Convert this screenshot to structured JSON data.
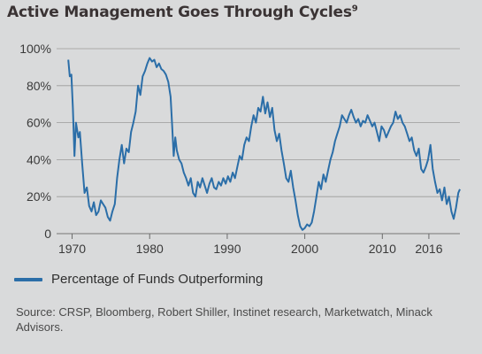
{
  "title": {
    "main": "Active Management Goes Through Cycles",
    "footnote": "9"
  },
  "legend": {
    "label": "Percentage of Funds Outperforming",
    "color": "#2b6ea8"
  },
  "source": "Source: CRSP, Bloomberg, Robert Shiller, Instinet research, Marketwatch, Minack Advisors.",
  "chart_data": {
    "type": "line",
    "title": "Active Management Goes Through Cycles",
    "xlabel": "",
    "ylabel": "",
    "xlim": [
      1968,
      2020
    ],
    "ylim": [
      0,
      100
    ],
    "x_ticks": [
      {
        "value": 1970,
        "label": "1970"
      },
      {
        "value": 1980,
        "label": "1980"
      },
      {
        "value": 1990,
        "label": "1990"
      },
      {
        "value": 2000,
        "label": "2000"
      },
      {
        "value": 2010,
        "label": "2010"
      },
      {
        "value": 2016,
        "label": "2016"
      }
    ],
    "y_ticks": [
      {
        "value": 0,
        "label": "0"
      },
      {
        "value": 20,
        "label": "20%"
      },
      {
        "value": 40,
        "label": "40%"
      },
      {
        "value": 60,
        "label": "60%"
      },
      {
        "value": 80,
        "label": "80%"
      },
      {
        "value": 100,
        "label": "100%"
      }
    ],
    "grid": true,
    "legend_position": "bottom-left",
    "series": [
      {
        "name": "Percentage of Funds Outperforming",
        "color": "#2b6ea8",
        "points": [
          [
            1969.5,
            94
          ],
          [
            1969.7,
            85
          ],
          [
            1969.9,
            86
          ],
          [
            1970.1,
            68
          ],
          [
            1970.3,
            42
          ],
          [
            1970.5,
            60
          ],
          [
            1970.8,
            52
          ],
          [
            1971.0,
            55
          ],
          [
            1971.3,
            38
          ],
          [
            1971.6,
            22
          ],
          [
            1971.9,
            25
          ],
          [
            1972.2,
            15
          ],
          [
            1972.5,
            12
          ],
          [
            1972.8,
            17
          ],
          [
            1973.1,
            10
          ],
          [
            1973.4,
            12
          ],
          [
            1973.7,
            18
          ],
          [
            1974.0,
            16
          ],
          [
            1974.3,
            14
          ],
          [
            1974.6,
            9
          ],
          [
            1974.9,
            7
          ],
          [
            1975.2,
            12
          ],
          [
            1975.5,
            16
          ],
          [
            1975.8,
            30
          ],
          [
            1976.1,
            40
          ],
          [
            1976.4,
            48
          ],
          [
            1976.7,
            38
          ],
          [
            1977.0,
            46
          ],
          [
            1977.3,
            44
          ],
          [
            1977.6,
            55
          ],
          [
            1977.9,
            60
          ],
          [
            1978.2,
            66
          ],
          [
            1978.5,
            80
          ],
          [
            1978.8,
            75
          ],
          [
            1979.1,
            85
          ],
          [
            1979.4,
            88
          ],
          [
            1979.7,
            92
          ],
          [
            1980.0,
            95
          ],
          [
            1980.3,
            93
          ],
          [
            1980.6,
            94
          ],
          [
            1980.9,
            90
          ],
          [
            1981.2,
            92
          ],
          [
            1981.5,
            89
          ],
          [
            1981.8,
            88
          ],
          [
            1982.1,
            86
          ],
          [
            1982.4,
            82
          ],
          [
            1982.7,
            74
          ],
          [
            1982.9,
            58
          ],
          [
            1983.1,
            42
          ],
          [
            1983.3,
            52
          ],
          [
            1983.5,
            45
          ],
          [
            1983.8,
            40
          ],
          [
            1984.1,
            38
          ],
          [
            1984.4,
            33
          ],
          [
            1984.7,
            30
          ],
          [
            1985.0,
            26
          ],
          [
            1985.3,
            30
          ],
          [
            1985.6,
            22
          ],
          [
            1985.9,
            20
          ],
          [
            1986.2,
            28
          ],
          [
            1986.5,
            25
          ],
          [
            1986.8,
            30
          ],
          [
            1987.1,
            26
          ],
          [
            1987.4,
            22
          ],
          [
            1987.7,
            27
          ],
          [
            1988.0,
            30
          ],
          [
            1988.3,
            25
          ],
          [
            1988.6,
            24
          ],
          [
            1988.9,
            28
          ],
          [
            1989.2,
            26
          ],
          [
            1989.5,
            30
          ],
          [
            1989.8,
            27
          ],
          [
            1990.1,
            31
          ],
          [
            1990.4,
            28
          ],
          [
            1990.7,
            33
          ],
          [
            1991.0,
            30
          ],
          [
            1991.3,
            36
          ],
          [
            1991.6,
            42
          ],
          [
            1991.9,
            40
          ],
          [
            1992.2,
            48
          ],
          [
            1992.5,
            52
          ],
          [
            1992.8,
            50
          ],
          [
            1993.1,
            58
          ],
          [
            1993.4,
            64
          ],
          [
            1993.7,
            60
          ],
          [
            1994.0,
            68
          ],
          [
            1994.3,
            66
          ],
          [
            1994.6,
            74
          ],
          [
            1994.9,
            65
          ],
          [
            1995.2,
            71
          ],
          [
            1995.5,
            63
          ],
          [
            1995.8,
            68
          ],
          [
            1996.1,
            56
          ],
          [
            1996.4,
            50
          ],
          [
            1996.7,
            54
          ],
          [
            1997.0,
            45
          ],
          [
            1997.3,
            38
          ],
          [
            1997.6,
            30
          ],
          [
            1997.9,
            28
          ],
          [
            1998.2,
            34
          ],
          [
            1998.5,
            25
          ],
          [
            1998.8,
            18
          ],
          [
            1999.1,
            10
          ],
          [
            1999.4,
            4
          ],
          [
            1999.7,
            2
          ],
          [
            2000.0,
            3
          ],
          [
            2000.3,
            5
          ],
          [
            2000.6,
            4
          ],
          [
            2000.9,
            6
          ],
          [
            2001.2,
            12
          ],
          [
            2001.5,
            20
          ],
          [
            2001.8,
            28
          ],
          [
            2002.1,
            24
          ],
          [
            2002.4,
            32
          ],
          [
            2002.7,
            28
          ],
          [
            2003.0,
            34
          ],
          [
            2003.3,
            40
          ],
          [
            2003.6,
            44
          ],
          [
            2003.9,
            50
          ],
          [
            2004.2,
            54
          ],
          [
            2004.5,
            58
          ],
          [
            2004.8,
            64
          ],
          [
            2005.1,
            62
          ],
          [
            2005.4,
            60
          ],
          [
            2005.7,
            64
          ],
          [
            2006.0,
            67
          ],
          [
            2006.3,
            63
          ],
          [
            2006.6,
            60
          ],
          [
            2006.9,
            62
          ],
          [
            2007.2,
            58
          ],
          [
            2007.5,
            61
          ],
          [
            2007.8,
            60
          ],
          [
            2008.1,
            64
          ],
          [
            2008.4,
            61
          ],
          [
            2008.7,
            58
          ],
          [
            2009.0,
            60
          ],
          [
            2009.3,
            55
          ],
          [
            2009.6,
            50
          ],
          [
            2009.9,
            58
          ],
          [
            2010.2,
            56
          ],
          [
            2010.5,
            52
          ],
          [
            2010.8,
            55
          ],
          [
            2011.1,
            58
          ],
          [
            2011.4,
            60
          ],
          [
            2011.7,
            66
          ],
          [
            2012.0,
            62
          ],
          [
            2012.3,
            64
          ],
          [
            2012.6,
            60
          ],
          [
            2012.9,
            58
          ],
          [
            2013.2,
            54
          ],
          [
            2013.5,
            50
          ],
          [
            2013.8,
            52
          ],
          [
            2014.1,
            45
          ],
          [
            2014.4,
            42
          ],
          [
            2014.7,
            46
          ],
          [
            2015.0,
            35
          ],
          [
            2015.3,
            33
          ],
          [
            2015.6,
            36
          ],
          [
            2015.9,
            40
          ],
          [
            2016.2,
            48
          ],
          [
            2016.5,
            35
          ],
          [
            2016.8,
            28
          ],
          [
            2017.1,
            22
          ],
          [
            2017.4,
            24
          ],
          [
            2017.7,
            18
          ],
          [
            2018.0,
            25
          ],
          [
            2018.3,
            16
          ],
          [
            2018.6,
            20
          ],
          [
            2018.9,
            12
          ],
          [
            2019.2,
            8
          ],
          [
            2019.5,
            14
          ],
          [
            2019.8,
            22
          ],
          [
            2020.0,
            24
          ]
        ]
      }
    ]
  }
}
